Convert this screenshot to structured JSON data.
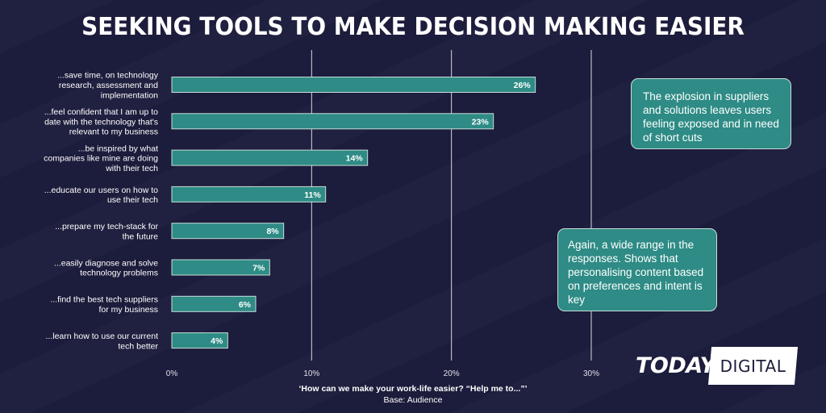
{
  "title": "SEEKING TOOLS TO MAKE DECISION MAKING EASIER",
  "chart_data": {
    "type": "bar",
    "orientation": "horizontal",
    "categories": [
      [
        "...save time, on technology",
        "research, assessment and",
        "implementation"
      ],
      [
        "...feel confident that I am up to",
        "date with the technology that's",
        "relevant to my business"
      ],
      [
        "...be inspired by what",
        "companies like mine are doing",
        "with their tech"
      ],
      [
        "...educate our users on how to",
        "use their tech"
      ],
      [
        "...prepare my tech-stack for",
        "the future"
      ],
      [
        "...easily diagnose and solve",
        "technology problems"
      ],
      [
        "...find the best tech suppliers",
        "for my business"
      ],
      [
        "...learn how to use our current",
        "tech better"
      ]
    ],
    "values": [
      26,
      23,
      14,
      11,
      8,
      7,
      6,
      4
    ],
    "value_labels": [
      "26%",
      "23%",
      "14%",
      "11%",
      "8%",
      "7%",
      "6%",
      "4%"
    ],
    "xlim": [
      0,
      30
    ],
    "xticks": [
      0,
      10,
      20,
      30
    ],
    "xtick_labels": [
      "0%",
      "10%",
      "20%",
      "30%"
    ],
    "grid": true,
    "xlabel": "",
    "ylabel": "",
    "bar_color": "#2e8b85",
    "bar_outline": "#c9ded9"
  },
  "callouts": [
    "The explosion in suppliers and solutions leaves users feeling exposed and in need of short cuts",
    "Again, a wide range in the responses. Shows that personalising content based on preferences and intent is key"
  ],
  "footer": {
    "question": "‘How can we make your work-life easier? “Help me to...”’",
    "base": "Base: Audience"
  },
  "logo": {
    "word1": "TODAY",
    "word2": "DIGITAL"
  },
  "colors": {
    "background": "#1c1c3c",
    "accent": "#2e8b85",
    "text": "#ffffff"
  }
}
